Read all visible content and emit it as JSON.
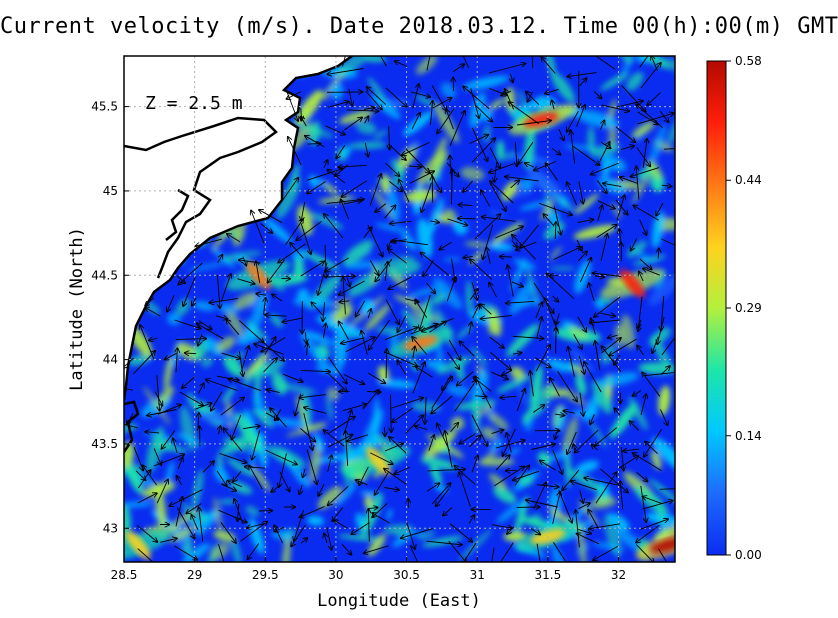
{
  "title": "Current velocity (m/s). Date 2018.03.12. Time 00(h):00(m) GMT",
  "depth_label": "Z = 2.5 m",
  "colors": {
    "colormap": [
      "#0a2cf0",
      "#1e6bff",
      "#00c8ff",
      "#1ee6a8",
      "#b4f03c",
      "#ffd21e",
      "#ff7814",
      "#ff1e0a",
      "#b40a00"
    ],
    "land": "#ffffff",
    "coastline": "#000000",
    "arrows": "#000000",
    "grid": "#b0b0b0"
  },
  "chart_data": {
    "type": "heatmap",
    "xlabel": "Longitude (East)",
    "ylabel": "Latitude (North)",
    "xlim": [
      28.5,
      32.4
    ],
    "ylim": [
      42.8,
      45.8
    ],
    "xticks": [
      "28.5",
      "29",
      "29.5",
      "30",
      "30.5",
      "31",
      "31.5",
      "32"
    ],
    "yticks": [
      "43",
      "43.5",
      "44",
      "44.5",
      "45",
      "45.5"
    ],
    "colorbar": {
      "ticks": [
        "0.00",
        "0.14",
        "0.29",
        "0.44",
        "0.58"
      ],
      "min": 0.0,
      "max": 0.58
    },
    "grid": true,
    "hotspots": [
      {
        "lon": 31.45,
        "lat": 45.42,
        "speed": 0.5
      },
      {
        "lon": 32.1,
        "lat": 44.45,
        "speed": 0.54
      },
      {
        "lon": 32.35,
        "lat": 42.9,
        "speed": 0.58
      },
      {
        "lon": 29.45,
        "lat": 44.5,
        "speed": 0.4
      },
      {
        "lon": 30.6,
        "lat": 44.1,
        "speed": 0.42
      },
      {
        "lon": 30.3,
        "lat": 43.4,
        "speed": 0.36
      },
      {
        "lon": 31.5,
        "lat": 42.95,
        "speed": 0.38
      },
      {
        "lon": 28.6,
        "lat": 42.9,
        "speed": 0.38
      }
    ]
  }
}
